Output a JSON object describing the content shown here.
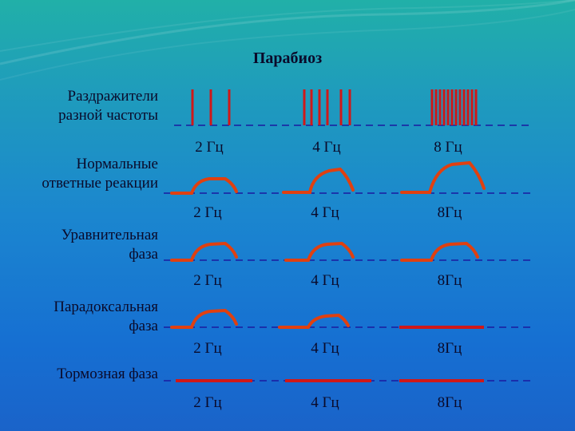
{
  "title": "Парабиоз",
  "rows": [
    {
      "label_lines": [
        "Раздражители",
        "разной частоты"
      ],
      "freqs": [
        "2 Гц",
        "4 Гц",
        "8 Гц"
      ]
    },
    {
      "label_lines": [
        "Нормальные",
        "ответные реакции"
      ],
      "freqs": [
        "2 Гц",
        "4 Гц",
        "8Гц"
      ]
    },
    {
      "label_lines": [
        "Уравнительная",
        "фаза"
      ],
      "freqs": [
        "2 Гц",
        "4 Гц",
        "8Гц"
      ]
    },
    {
      "label_lines": [
        "Парадоксальная",
        "фаза"
      ],
      "freqs": [
        "2 Гц",
        "4 Гц",
        "8Гц"
      ]
    },
    {
      "label_lines": [
        "Тормозная фаза"
      ],
      "freqs": [
        "2 Гц",
        "4 Гц",
        "8Гц"
      ]
    }
  ],
  "colors": {
    "stimulus": "#d01818",
    "response": "#e04010",
    "baseline": "#1a1aa0",
    "text": "#0a0a2a"
  }
}
